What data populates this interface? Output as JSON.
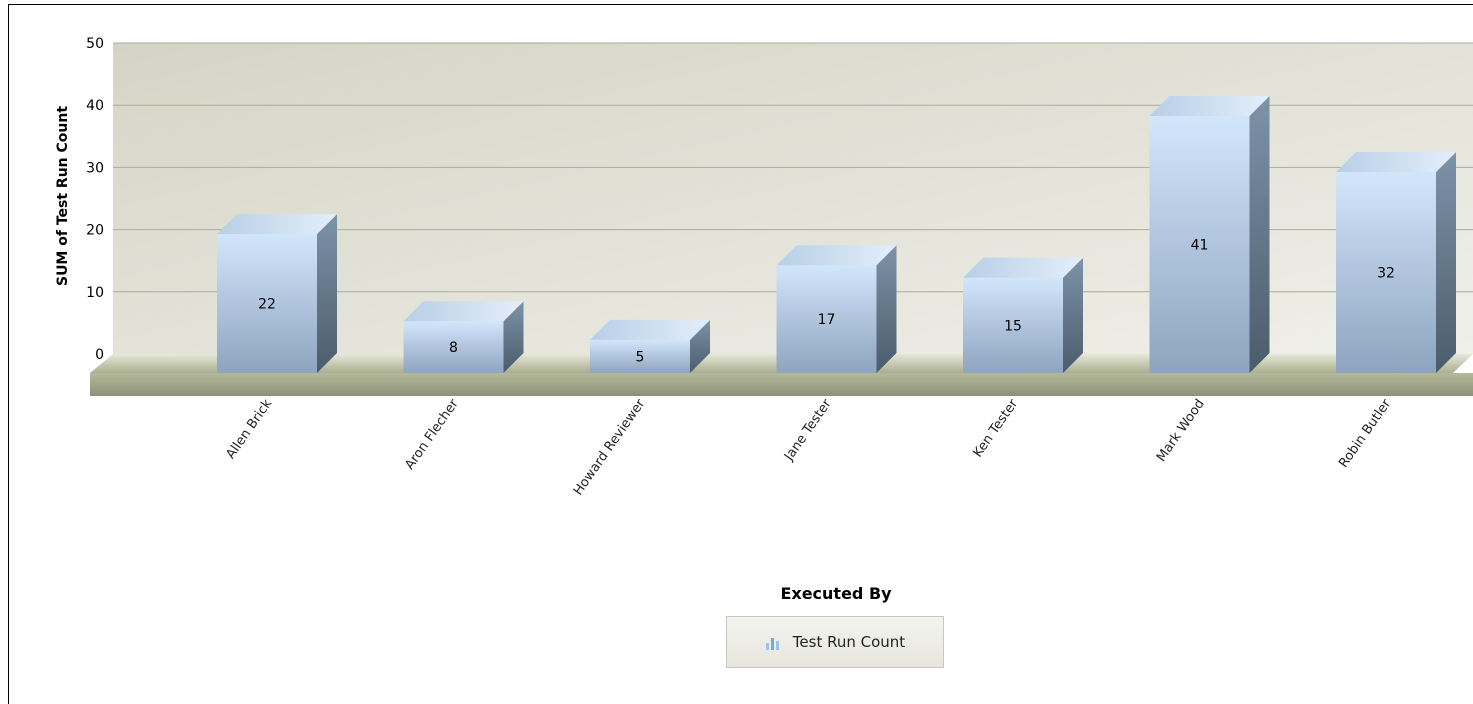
{
  "chart_data": {
    "type": "bar",
    "categories": [
      "Allen Brick",
      "Aron Flecher",
      "Howard Reviewer",
      "Jane Tester",
      "Ken Tester",
      "Mark Wood",
      "Robin Butler"
    ],
    "series": [
      {
        "name": "Test Run Count",
        "values": [
          22,
          8,
          5,
          17,
          15,
          41,
          32
        ]
      }
    ],
    "xlabel": "Executed By",
    "ylabel": "SUM of Test Run Count",
    "ylim": [
      0,
      50
    ],
    "yticks": [
      0,
      10,
      20,
      30,
      40,
      50
    ],
    "grid": true,
    "legend": "bottom",
    "colors": {
      "bar_top": "#c8def5",
      "bar_bottom": "#8fa5c1",
      "bar_side": "#5f7387",
      "plot_bg": "#dcdcd0",
      "floor": "#b8bca2"
    }
  }
}
